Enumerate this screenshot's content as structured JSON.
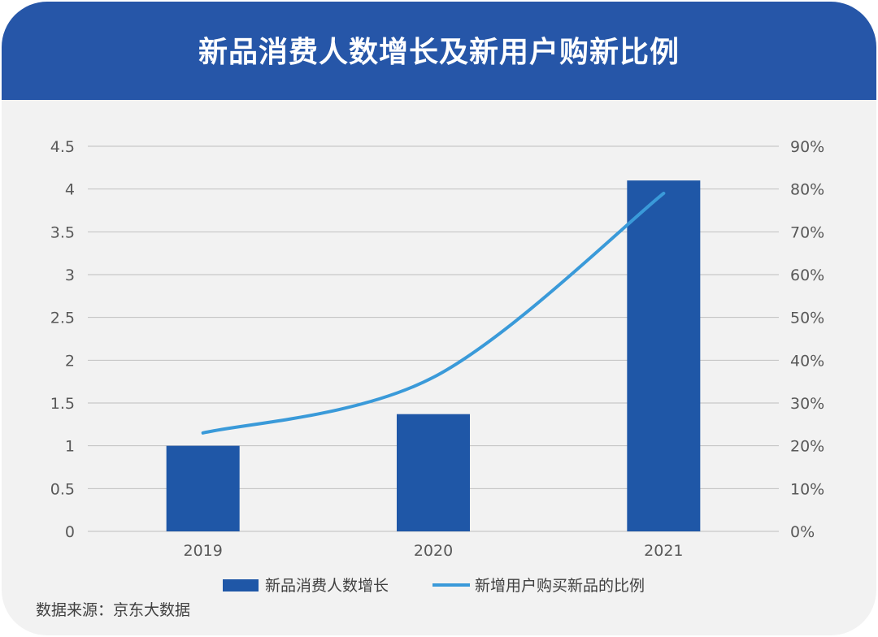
{
  "title": "新品消费人数增长及新用户购新比例",
  "source": "数据来源：京东大数据",
  "colors": {
    "header": "#2656a8",
    "bar": "#1f57a7",
    "line": "#3a9ad9",
    "grid": "#bfbfbf",
    "background": "#f2f2f2"
  },
  "chart_data": {
    "type": "bar",
    "categories": [
      "2019",
      "2020",
      "2021"
    ],
    "series": [
      {
        "name": "新品消费人数增长",
        "type": "bar",
        "axis": "left",
        "values": [
          1.0,
          1.37,
          4.1
        ]
      },
      {
        "name": "新增用户购买新品的比例",
        "type": "line",
        "axis": "right",
        "values": [
          0.23,
          0.36,
          0.79
        ]
      }
    ],
    "ylim": [
      0,
      4.5
    ],
    "yticks": [
      "0",
      "0.5",
      "1",
      "1.5",
      "2",
      "2.5",
      "3",
      "3.5",
      "4",
      "4.5"
    ],
    "y2lim": [
      0,
      0.9
    ],
    "y2ticks": [
      "0%",
      "10%",
      "20%",
      "30%",
      "40%",
      "50%",
      "60%",
      "70%",
      "80%",
      "90%"
    ],
    "grid": true,
    "legend": "bottom"
  }
}
